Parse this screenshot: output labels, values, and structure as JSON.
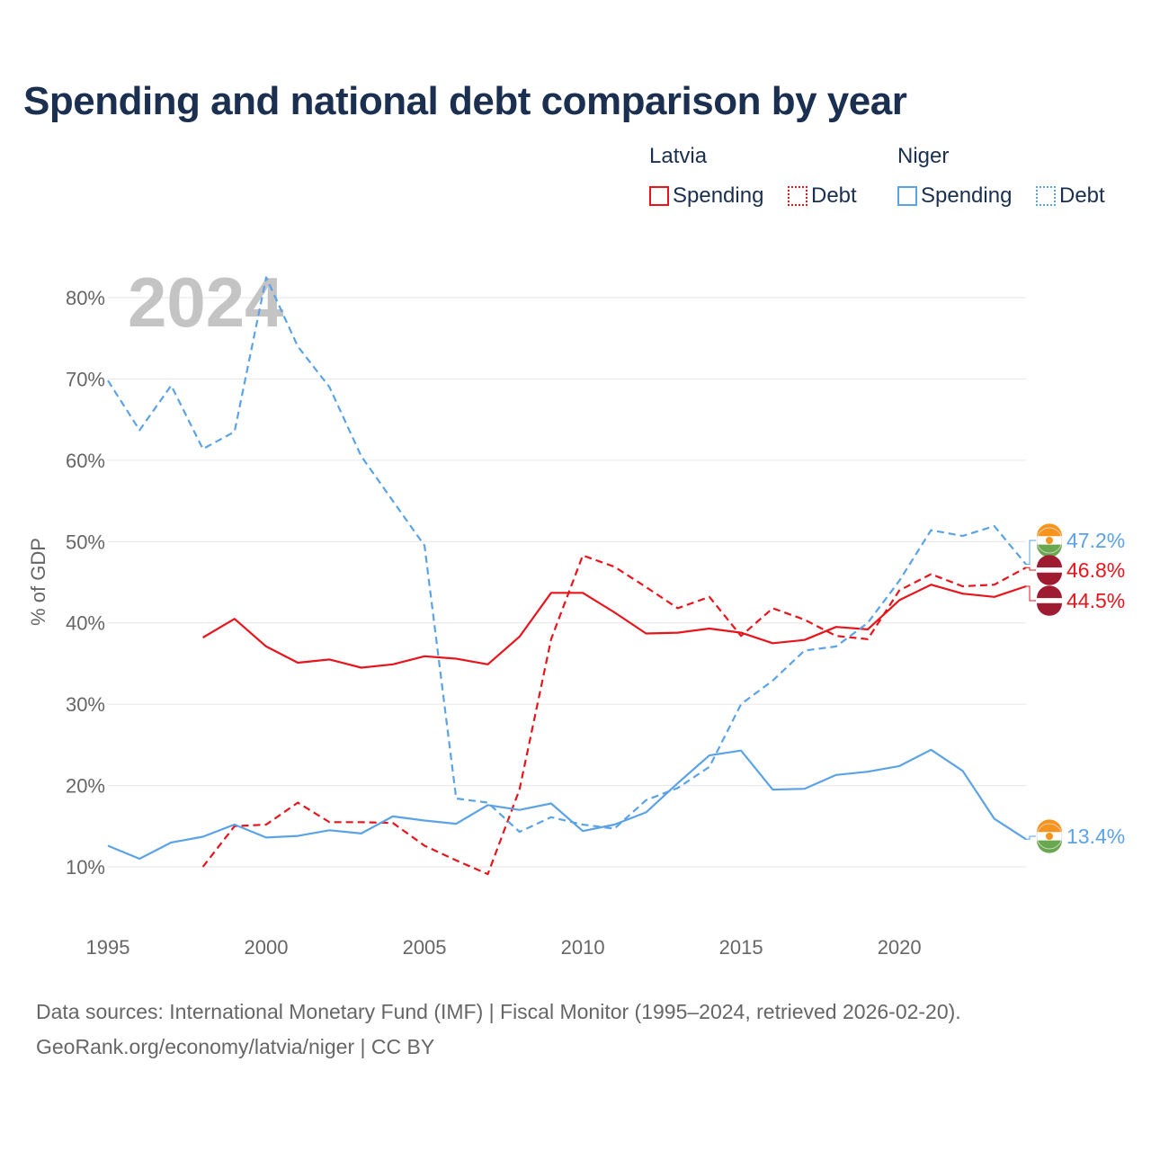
{
  "title": "Spending and national debt comparison by year",
  "legend": {
    "groups": [
      {
        "name": "Latvia",
        "items": [
          {
            "label": "Spending"
          },
          {
            "label": "Debt"
          }
        ]
      },
      {
        "name": "Niger",
        "items": [
          {
            "label": "Spending"
          },
          {
            "label": "Debt"
          }
        ]
      }
    ]
  },
  "colors": {
    "latvia": "#e8141c",
    "niger": "#5ba3e6",
    "grid": "#e6e6e6",
    "title": "#1b3050"
  },
  "chart_data": {
    "type": "line",
    "title": "Spending and national debt comparison by year",
    "year_label": "2024",
    "ylabel": "% of GDP",
    "xlabel": "",
    "xlim": [
      1995,
      2024
    ],
    "ylim": [
      5,
      82
    ],
    "x_ticks": [
      "1995",
      "2000",
      "2005",
      "2010",
      "2015",
      "2020"
    ],
    "y_ticks": [
      "10%",
      "20%",
      "30%",
      "40%",
      "50%",
      "60%",
      "70%",
      "80%"
    ],
    "series": [
      {
        "name": "Latvia Spending",
        "country": "Latvia",
        "metric": "Spending",
        "style": "solid",
        "color": "#e8141c",
        "x": [
          1998,
          1999,
          2000,
          2001,
          2002,
          2003,
          2004,
          2005,
          2006,
          2007,
          2008,
          2009,
          2010,
          2011,
          2012,
          2013,
          2014,
          2015,
          2016,
          2017,
          2018,
          2019,
          2020,
          2021,
          2022,
          2023,
          2024
        ],
        "y": [
          38.2,
          40.5,
          37.1,
          35.1,
          35.5,
          34.5,
          34.9,
          35.9,
          35.6,
          34.9,
          38.3,
          43.7,
          43.7,
          41.3,
          38.7,
          38.8,
          39.3,
          38.8,
          37.5,
          37.9,
          39.5,
          39.2,
          42.8,
          44.7,
          43.6,
          43.2,
          44.5
        ]
      },
      {
        "name": "Latvia Debt",
        "country": "Latvia",
        "metric": "Debt",
        "style": "dashed",
        "color": "#e8141c",
        "x": [
          1998,
          1999,
          2000,
          2001,
          2002,
          2003,
          2004,
          2005,
          2006,
          2007,
          2008,
          2009,
          2010,
          2011,
          2012,
          2013,
          2014,
          2015,
          2016,
          2017,
          2018,
          2019,
          2020,
          2021,
          2022,
          2023,
          2024
        ],
        "y": [
          10.0,
          15.0,
          15.2,
          17.9,
          15.5,
          15.5,
          15.4,
          12.6,
          10.8,
          9.1,
          19.5,
          38.0,
          48.3,
          46.9,
          44.4,
          41.8,
          43.2,
          38.4,
          41.8,
          40.4,
          38.4,
          38.0,
          44.0,
          46.0,
          44.5,
          44.7,
          46.8
        ]
      },
      {
        "name": "Niger Spending",
        "country": "Niger",
        "metric": "Spending",
        "style": "solid",
        "color": "#5ba3e6",
        "x": [
          1995,
          1996,
          1997,
          1998,
          1999,
          2000,
          2001,
          2002,
          2003,
          2004,
          2005,
          2006,
          2007,
          2008,
          2009,
          2010,
          2011,
          2012,
          2013,
          2014,
          2015,
          2016,
          2017,
          2018,
          2019,
          2020,
          2021,
          2022,
          2023,
          2024
        ],
        "y": [
          12.6,
          11.0,
          13.0,
          13.7,
          15.2,
          13.6,
          13.8,
          14.5,
          14.1,
          16.2,
          15.7,
          15.3,
          17.6,
          17.0,
          17.8,
          14.4,
          15.2,
          16.7,
          20.3,
          23.7,
          24.3,
          19.5,
          19.6,
          21.3,
          21.7,
          22.4,
          24.4,
          21.8,
          15.9,
          13.4
        ]
      },
      {
        "name": "Niger Debt",
        "country": "Niger",
        "metric": "Debt",
        "style": "dashed",
        "color": "#5ba3e6",
        "x": [
          1995,
          1996,
          1997,
          1998,
          1999,
          2000,
          2001,
          2002,
          2003,
          2004,
          2005,
          2006,
          2007,
          2008,
          2009,
          2010,
          2011,
          2012,
          2013,
          2014,
          2015,
          2016,
          2017,
          2018,
          2019,
          2020,
          2021,
          2022,
          2023,
          2024
        ],
        "y": [
          69.8,
          63.7,
          69.2,
          61.4,
          63.5,
          82.5,
          74.0,
          69.0,
          60.5,
          55.0,
          49.5,
          18.4,
          17.9,
          14.3,
          16.1,
          15.2,
          14.7,
          18.2,
          19.7,
          22.3,
          30.0,
          32.9,
          36.6,
          37.1,
          40.0,
          45.2,
          51.4,
          50.7,
          51.9,
          47.2
        ]
      }
    ],
    "end_labels": [
      {
        "series": "Niger Debt",
        "text": "47.2%",
        "flag": "niger-flag-icon"
      },
      {
        "series": "Latvia Debt",
        "text": "46.8%",
        "flag": "latvia-flag-icon"
      },
      {
        "series": "Latvia Spending",
        "text": "44.5%",
        "flag": "latvia-flag-icon"
      },
      {
        "series": "Niger Spending",
        "text": "13.4%",
        "flag": "niger-flag-icon"
      }
    ]
  },
  "footer": {
    "sources": "Data sources: International Monetary Fund (IMF) | Fiscal Monitor (1995–2024, retrieved 2026-02-20).",
    "credit": "GeoRank.org/economy/latvia/niger | CC BY"
  }
}
